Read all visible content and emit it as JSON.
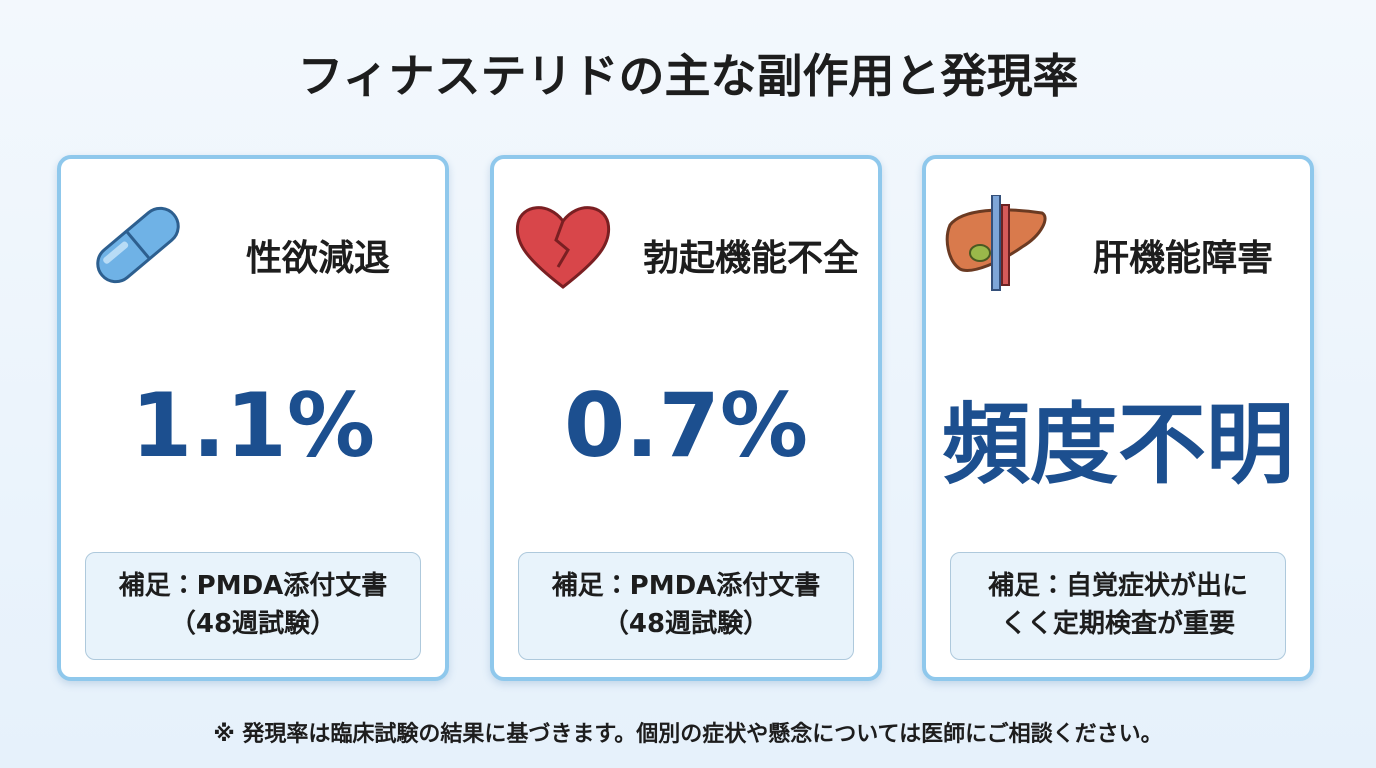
{
  "header": {
    "title": "フィナステリドの主な副作用と発現率"
  },
  "cards": [
    {
      "name": "性欲減退",
      "value": "1.1%",
      "note": [
        "補足：PMDA添付文書",
        "（48週試験）"
      ]
    },
    {
      "name": "勃起機能不全",
      "value": "0.7%",
      "note": [
        "補足：PMDA添付文書",
        "（48週試験）"
      ]
    },
    {
      "name": "肝機能障害",
      "value": "頻度不明",
      "note": [
        "補足：自覚症状が出に",
        "くく定期検査が重要"
      ]
    }
  ],
  "footnote": "※ 発現率は臨床試験の結果に基づきます。個別の症状や懸念については医師にご相談ください。"
}
